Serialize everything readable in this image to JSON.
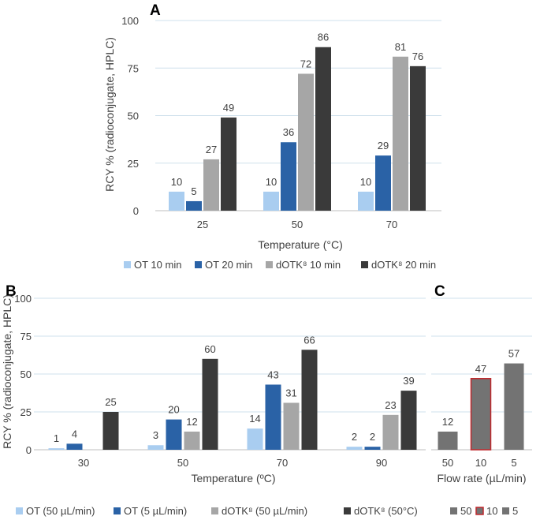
{
  "colors": {
    "light_blue": "#a9cdf0",
    "blue": "#2a62a6",
    "grey": "#a6a6a6",
    "dark": "#3a3a3a",
    "mid_grey": "#737373",
    "red_outline": "#c0282d"
  },
  "chart_data": [
    {
      "id": "A",
      "type": "bar",
      "panel_label": "A",
      "ylabel": "RCY % (radioconjugate, HPLC)",
      "xlabel": "Temperature (°C)",
      "ylim": [
        0,
        100
      ],
      "yticks": [
        "0",
        "25",
        "50",
        "75",
        "100"
      ],
      "categories": [
        "25",
        "50",
        "70"
      ],
      "series": [
        {
          "name": "OT 10 min",
          "values": [
            10,
            10,
            10
          ],
          "labels": [
            "10",
            "10",
            "10"
          ],
          "color": "light_blue"
        },
        {
          "name": "OT 20 min",
          "values": [
            5,
            36,
            29
          ],
          "labels": [
            "5",
            "36",
            "29"
          ],
          "color": "blue"
        },
        {
          "name": "dOTK⁸ 10 min",
          "values": [
            27,
            72,
            81
          ],
          "labels": [
            "27",
            "72",
            "81"
          ],
          "color": "grey"
        },
        {
          "name": "dOTK⁸ 20 min",
          "values": [
            49,
            86,
            76
          ],
          "labels": [
            "49",
            "86",
            "76"
          ],
          "color": "dark"
        }
      ]
    },
    {
      "id": "B",
      "type": "bar",
      "panel_label": "B",
      "ylabel": "RCY % (radioconjugate, HPLC)",
      "xlabel": "Temperature (ºC)",
      "ylim": [
        0,
        100
      ],
      "yticks": [
        "0",
        "25",
        "50",
        "75",
        "100"
      ],
      "categories": [
        "30",
        "50",
        "70",
        "90"
      ],
      "series": [
        {
          "name": "OT (50 µL/min)",
          "values": [
            1,
            3,
            14,
            2
          ],
          "labels": [
            "1",
            "3",
            "14",
            "2"
          ],
          "color": "light_blue"
        },
        {
          "name": "OT (5 µL/min)",
          "values": [
            4,
            20,
            43,
            2
          ],
          "labels": [
            "4",
            "20",
            "43",
            "2"
          ],
          "color": "blue"
        },
        {
          "name": "dOTK⁸ (50 µL/min)",
          "values": [
            0,
            12,
            31,
            23
          ],
          "labels": [
            "",
            "12",
            "31",
            "23"
          ],
          "color": "grey"
        },
        {
          "name": "dOTK⁸ (50°C)",
          "values": [
            25,
            60,
            66,
            39
          ],
          "labels": [
            "25",
            "60",
            "66",
            "39"
          ],
          "color": "dark"
        }
      ]
    },
    {
      "id": "C",
      "type": "bar",
      "panel_label": "C",
      "xlabel": "Flow rate (µL/min)",
      "ylim": [
        0,
        100
      ],
      "categories": [
        "50",
        "10",
        "5"
      ],
      "values": [
        12,
        47,
        57
      ],
      "labels": [
        "12",
        "47",
        "57"
      ],
      "legend": [
        {
          "name": "50",
          "color": "mid_grey"
        },
        {
          "name": "10",
          "color": "mid_grey",
          "outline": "red_outline"
        },
        {
          "name": "5",
          "color": "mid_grey"
        }
      ]
    }
  ]
}
